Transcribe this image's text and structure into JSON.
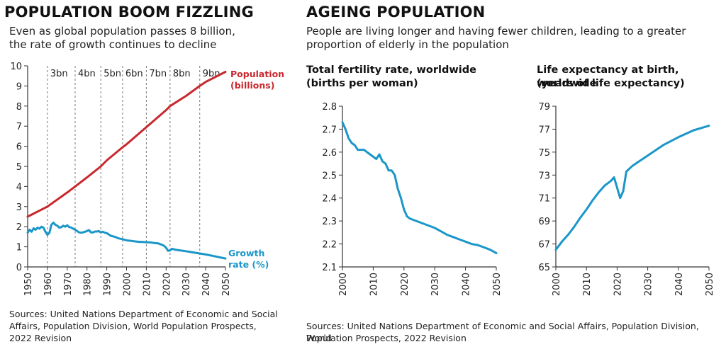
{
  "left": {
    "title": "POPULATION BOOM FIZZLING",
    "subtitle_line1": "Even as global population passes 8 billion,",
    "subtitle_line2": "the rate of growth continues to decline",
    "source_line1": "Sources: United Nations Department of Economic and Social",
    "source_line2": "Affairs, Population Division, World Population Prospects,",
    "source_line3": "2022 Revision"
  },
  "right": {
    "title": "AGEING POPULATION",
    "subtitle_line1": "People are living longer and having fewer children, leading to a greater",
    "subtitle_line2": "proportion of elderly in the population",
    "source_line1": "Sources: United Nations Department of Economic and Social Affairs, Population Division, World",
    "source_line2": "Population Prospects, 2022 Revision"
  },
  "colors": {
    "population": "#c8282e",
    "growth": "#1a96c8",
    "axis": "#333333",
    "milestone": "#777777"
  },
  "chart_data": [
    {
      "type": "line",
      "xlim": [
        1950,
        2050
      ],
      "ylim": [
        0,
        10
      ],
      "x_ticks": [
        "1950",
        "1960",
        "1970",
        "1980",
        "1990",
        "2000",
        "2010",
        "2020",
        "2030",
        "2040",
        "2050"
      ],
      "y_ticks": [
        "0",
        "1",
        "2",
        "3",
        "4",
        "5",
        "6",
        "7",
        "8",
        "9",
        "10"
      ],
      "milestones": [
        {
          "label": "3bn",
          "x": 1960
        },
        {
          "label": "4bn",
          "x": 1974
        },
        {
          "label": "5bn",
          "x": 1987
        },
        {
          "label": "6bn",
          "x": 1998
        },
        {
          "label": "7bn",
          "x": 2010
        },
        {
          "label": "8bn",
          "x": 2022
        },
        {
          "label": "9bn",
          "x": 2037
        }
      ],
      "series": [
        {
          "name": "Population (billions)",
          "name_line1": "Population",
          "name_line2": "(billions)",
          "color": "#c8282e",
          "x": [
            1950,
            1960,
            1970,
            1974,
            1980,
            1987,
            1990,
            1998,
            2000,
            2010,
            2020,
            2022,
            2030,
            2037,
            2040,
            2050
          ],
          "values": [
            2.5,
            3.0,
            3.7,
            4.0,
            4.45,
            5.0,
            5.3,
            5.95,
            6.1,
            6.95,
            7.8,
            8.0,
            8.5,
            9.0,
            9.2,
            9.7
          ]
        },
        {
          "name": "Growth rate (%)",
          "name_line1": "Growth",
          "name_line2": "rate (%)",
          "color": "#1a96c8",
          "x": [
            1950,
            1951,
            1952,
            1953,
            1954,
            1955,
            1956,
            1957,
            1958,
            1959,
            1960,
            1961,
            1962,
            1963,
            1964,
            1965,
            1966,
            1967,
            1968,
            1969,
            1970,
            1971,
            1972,
            1973,
            1974,
            1975,
            1976,
            1977,
            1978,
            1979,
            1980,
            1981,
            1982,
            1983,
            1984,
            1985,
            1986,
            1987,
            1988,
            1989,
            1990,
            1992,
            1994,
            1996,
            1998,
            2000,
            2002,
            2004,
            2006,
            2008,
            2010,
            2012,
            2014,
            2016,
            2018,
            2019,
            2020,
            2021,
            2022,
            2023,
            2025,
            2030,
            2035,
            2040,
            2045,
            2050
          ],
          "values": [
            1.7,
            1.85,
            1.75,
            1.92,
            1.85,
            1.95,
            1.9,
            2.0,
            1.95,
            1.75,
            1.6,
            1.7,
            2.1,
            2.2,
            2.1,
            2.05,
            1.95,
            1.98,
            2.05,
            2.0,
            2.07,
            1.98,
            1.96,
            1.9,
            1.85,
            1.78,
            1.72,
            1.7,
            1.72,
            1.75,
            1.78,
            1.83,
            1.72,
            1.72,
            1.76,
            1.76,
            1.78,
            1.72,
            1.75,
            1.7,
            1.68,
            1.55,
            1.5,
            1.42,
            1.38,
            1.32,
            1.3,
            1.27,
            1.25,
            1.24,
            1.23,
            1.22,
            1.19,
            1.17,
            1.1,
            1.05,
            0.95,
            0.8,
            0.82,
            0.9,
            0.85,
            0.78,
            0.7,
            0.62,
            0.52,
            0.42
          ]
        }
      ]
    },
    {
      "type": "line",
      "title": "Total fertility rate, worldwide",
      "title_line2": "(births per woman)",
      "xlim": [
        2000,
        2050
      ],
      "ylim": [
        2.1,
        2.8
      ],
      "x_ticks": [
        "2000",
        "2010",
        "2020",
        "2030",
        "2040",
        "2050"
      ],
      "y_ticks": [
        "2.1",
        "2.2",
        "2.3",
        "2.4",
        "2.5",
        "2.6",
        "2.7",
        "2.8"
      ],
      "series": [
        {
          "color": "#1a96c8",
          "x": [
            2000,
            2001,
            2002,
            2003,
            2004,
            2005,
            2006,
            2007,
            2008,
            2009,
            2010,
            2011,
            2012,
            2013,
            2014,
            2015,
            2016,
            2017,
            2018,
            2019,
            2020,
            2021,
            2022,
            2024,
            2026,
            2028,
            2030,
            2032,
            2034,
            2036,
            2038,
            2040,
            2042,
            2044,
            2046,
            2048,
            2050
          ],
          "values": [
            2.73,
            2.7,
            2.66,
            2.64,
            2.63,
            2.61,
            2.61,
            2.61,
            2.6,
            2.59,
            2.58,
            2.57,
            2.59,
            2.56,
            2.55,
            2.52,
            2.52,
            2.5,
            2.44,
            2.4,
            2.35,
            2.32,
            2.31,
            2.3,
            2.29,
            2.28,
            2.27,
            2.255,
            2.24,
            2.23,
            2.22,
            2.21,
            2.2,
            2.195,
            2.185,
            2.175,
            2.16
          ]
        }
      ]
    },
    {
      "type": "line",
      "title": "Life expectancy at birth, worldwide",
      "title_line2": "(years of life expectancy)",
      "xlim": [
        2000,
        2050
      ],
      "ylim": [
        65,
        79
      ],
      "x_ticks": [
        "2000",
        "2010",
        "2020",
        "2030",
        "2040",
        "2050"
      ],
      "y_ticks": [
        "65",
        "67",
        "69",
        "71",
        "73",
        "75",
        "77",
        "79"
      ],
      "series": [
        {
          "color": "#1a96c8",
          "x": [
            2000,
            2002,
            2004,
            2006,
            2008,
            2010,
            2012,
            2014,
            2016,
            2018,
            2019,
            2020,
            2021,
            2022,
            2023,
            2025,
            2030,
            2035,
            2040,
            2045,
            2050
          ],
          "values": [
            66.5,
            67.2,
            67.8,
            68.5,
            69.3,
            70.0,
            70.8,
            71.5,
            72.1,
            72.5,
            72.8,
            71.9,
            71.0,
            71.6,
            73.3,
            73.8,
            74.7,
            75.6,
            76.3,
            76.9,
            77.3
          ]
        }
      ]
    }
  ]
}
